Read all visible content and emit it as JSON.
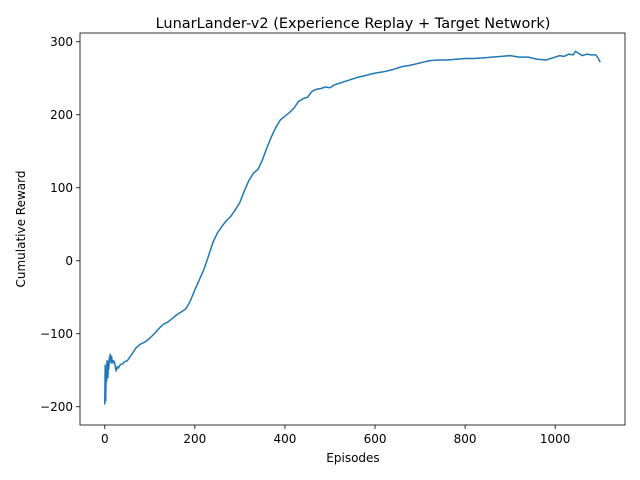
{
  "chart_data": {
    "type": "line",
    "title": "LunarLander-v2 (Experience Replay + Target Network)",
    "xlabel": "Episodes",
    "ylabel": "Cumulative Reward",
    "xlim": [
      -55,
      1155
    ],
    "ylim": [
      -225,
      312
    ],
    "xticks": [
      0,
      200,
      400,
      600,
      800,
      1000
    ],
    "yticks": [
      -200,
      -100,
      0,
      100,
      200,
      300
    ],
    "xtick_labels": [
      "0",
      "200",
      "400",
      "600",
      "800",
      "1000"
    ],
    "ytick_labels": [
      "−200",
      "−100",
      "0",
      "100",
      "200",
      "300"
    ],
    "grid": false,
    "line_color": "#1f77b4",
    "series": [
      {
        "x": [
          0,
          1,
          2,
          3,
          4,
          5,
          6,
          7,
          8,
          9,
          10,
          11,
          12,
          13,
          14,
          15,
          16,
          18,
          20,
          22,
          25,
          28,
          30,
          35,
          40,
          45,
          50,
          60,
          70,
          80,
          90,
          100,
          110,
          120,
          130,
          140,
          150,
          160,
          170,
          180,
          190,
          200,
          210,
          220,
          230,
          240,
          250,
          260,
          270,
          280,
          290,
          300,
          310,
          320,
          330,
          340,
          350,
          360,
          370,
          380,
          390,
          400,
          410,
          420,
          430,
          440,
          450,
          460,
          470,
          480,
          490,
          500,
          510,
          520,
          540,
          560,
          580,
          600,
          620,
          640,
          660,
          680,
          700,
          720,
          740,
          760,
          780,
          800,
          820,
          840,
          860,
          880,
          900,
          920,
          940,
          960,
          980,
          1000,
          1010,
          1020,
          1030,
          1040,
          1045,
          1050,
          1055,
          1060,
          1070,
          1080,
          1090,
          1095,
          1100
        ],
        "y": [
          -197,
          -143,
          -192,
          -152,
          -165,
          -137,
          -142,
          -160,
          -138,
          -148,
          -133,
          -136,
          -128,
          -134,
          -140,
          -131,
          -135,
          -140,
          -137,
          -140,
          -151,
          -145,
          -147,
          -142,
          -141,
          -138,
          -137,
          -128,
          -119,
          -114,
          -111,
          -106,
          -100,
          -93,
          -87,
          -84,
          -79,
          -74,
          -70,
          -66,
          -55,
          -40,
          -26,
          -12,
          6,
          25,
          38,
          47,
          55,
          61,
          70,
          80,
          96,
          110,
          120,
          125,
          138,
          155,
          170,
          183,
          193,
          198,
          203,
          209,
          218,
          222,
          224,
          232,
          235,
          236,
          238,
          237,
          241,
          243,
          247,
          251,
          254,
          257,
          259,
          262,
          266,
          268,
          271,
          274,
          275,
          275,
          276,
          277,
          277,
          278,
          279,
          280,
          281,
          279,
          279,
          276,
          275,
          279,
          281,
          280,
          283,
          282,
          287,
          285,
          283,
          281,
          283,
          282,
          282,
          278,
          272
        ]
      }
    ]
  }
}
